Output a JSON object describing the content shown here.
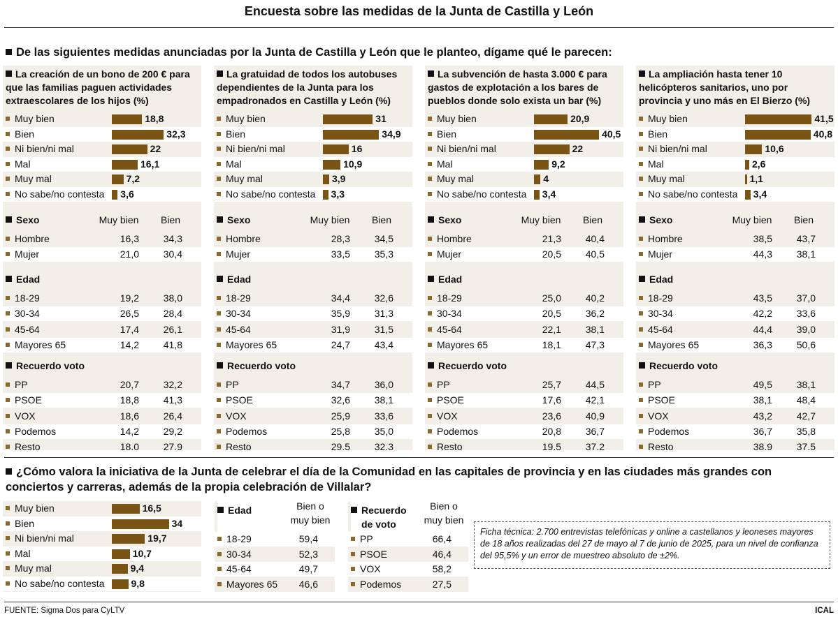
{
  "title": "Encuesta sobre las medidas de la Junta de Castilla y León",
  "main_question": "De las siguientes medidas anunciadas por la Junta de Castilla y León que le planteo, dígame qué le parecen:",
  "colors": {
    "bar": "#7a5414",
    "marker": "#8a6a2c",
    "panel_bg": "#f1efe8",
    "stripe": "#ffffff"
  },
  "demo_headers": {
    "sexo": "Sexo",
    "edad": "Edad",
    "recuerdo": "Recuerdo voto",
    "muy_bien": "Muy bien",
    "bien": "Bien"
  },
  "chart_data": [
    {
      "type": "bar",
      "title": "La creación de un bono de 200 € para que las familias paguen actividades extraescolares de los hijos (%)",
      "categories": [
        "Muy bien",
        "Bien",
        "Ni bien/ni mal",
        "Mal",
        "Muy mal",
        "No sabe/no contesta"
      ],
      "values": [
        18.8,
        32.3,
        22,
        16.1,
        7.2,
        3.6
      ],
      "labels": [
        "18,8",
        "32,3",
        "22",
        "16,1",
        "7,2",
        "3,6"
      ],
      "breakdown": {
        "sexo": [
          [
            "Hombre",
            "16,3",
            "34,3"
          ],
          [
            "Mujer",
            "21,0",
            "30,4"
          ]
        ],
        "edad": [
          [
            "18-29",
            "19,2",
            "38,0"
          ],
          [
            "30-34",
            "26,5",
            "28,4"
          ],
          [
            "45-64",
            "17,4",
            "26,1"
          ],
          [
            "Mayores 65",
            "14,2",
            "41,8"
          ]
        ],
        "voto": [
          [
            "PP",
            "20,7",
            "32,2"
          ],
          [
            "PSOE",
            "18,8",
            "41,3"
          ],
          [
            "VOX",
            "18,6",
            "26,4"
          ],
          [
            "Podemos",
            "14,2",
            "29,2"
          ],
          [
            "Resto",
            "18,0",
            "27,9"
          ]
        ]
      }
    },
    {
      "type": "bar",
      "title": "La gratuidad de todos los autobuses dependientes de la Junta para los empadronados en Castilla y León (%)",
      "categories": [
        "Muy bien",
        "Bien",
        "Ni bien/ni mal",
        "Mal",
        "Muy mal",
        "No sabe/no contesta"
      ],
      "values": [
        31,
        34.9,
        16,
        10.9,
        3.9,
        3.3
      ],
      "labels": [
        "31",
        "34,9",
        "16",
        "10,9",
        "3,9",
        "3,3"
      ],
      "breakdown": {
        "sexo": [
          [
            "Hombre",
            "28,3",
            "34,5"
          ],
          [
            "Mujer",
            "33,5",
            "35,3"
          ]
        ],
        "edad": [
          [
            "18-29",
            "34,4",
            "32,6"
          ],
          [
            "30-34",
            "35,9",
            "31,3"
          ],
          [
            "45-64",
            "31,9",
            "31,5"
          ],
          [
            "Mayores 65",
            "24,7",
            "43,4"
          ]
        ],
        "voto": [
          [
            "PP",
            "34,7",
            "36,0"
          ],
          [
            "PSOE",
            "32,6",
            "38,1"
          ],
          [
            "VOX",
            "25,9",
            "33,6"
          ],
          [
            "Podemos",
            "25,8",
            "35,0"
          ],
          [
            "Resto",
            "29,5",
            "32,3"
          ]
        ]
      }
    },
    {
      "type": "bar",
      "title": "La subvención de hasta 3.000 € para gastos de explotación a los bares de pueblos donde solo exista un bar (%)",
      "categories": [
        "Muy bien",
        "Bien",
        "Ni bien/ni mal",
        "Mal",
        "Muy mal",
        "No sabe/no contesta"
      ],
      "values": [
        20.9,
        40.5,
        22,
        9.2,
        4,
        3.4
      ],
      "labels": [
        "20,9",
        "40,5",
        "22",
        "9,2",
        "4",
        "3,4"
      ],
      "breakdown": {
        "sexo": [
          [
            "Hombre",
            "21,3",
            "40,4"
          ],
          [
            "Mujer",
            "20,5",
            "40,5"
          ]
        ],
        "edad": [
          [
            "18-29",
            "25,0",
            "40,2"
          ],
          [
            "30-34",
            "20,5",
            "36,2"
          ],
          [
            "45-64",
            "22,1",
            "38,1"
          ],
          [
            "Mayores 65",
            "18,1",
            "47,3"
          ]
        ],
        "voto": [
          [
            "PP",
            "25,7",
            "44,5"
          ],
          [
            "PSOE",
            "17,6",
            "42,1"
          ],
          [
            "VOX",
            "23,6",
            "40,9"
          ],
          [
            "Podemos",
            "20,8",
            "36,7"
          ],
          [
            "Resto",
            "19,5",
            "37,2"
          ]
        ]
      }
    },
    {
      "type": "bar",
      "title": "La ampliación hasta tener 10 helicópteros sanitarios, uno por provincia y uno más en El Bierzo (%)",
      "categories": [
        "Muy bien",
        "Bien",
        "Ni bien/ni mal",
        "Mal",
        "Muy mal",
        "No sabe/no contesta"
      ],
      "values": [
        41.5,
        40.8,
        10.6,
        2.6,
        1.1,
        3.4
      ],
      "labels": [
        "41,5",
        "40,8",
        "10,6",
        "2,6",
        "1,1",
        "3,4"
      ],
      "breakdown": {
        "sexo": [
          [
            "Hombre",
            "38,5",
            "43,7"
          ],
          [
            "Mujer",
            "44,3",
            "38,1"
          ]
        ],
        "edad": [
          [
            "18-29",
            "43,5",
            "37,0"
          ],
          [
            "30-34",
            "42,2",
            "33,6"
          ],
          [
            "45-64",
            "44,4",
            "39,0"
          ],
          [
            "Mayores 65",
            "36,3",
            "50,6"
          ]
        ],
        "voto": [
          [
            "PP",
            "49,5",
            "38,1"
          ],
          [
            "PSOE",
            "38,1",
            "48,4"
          ],
          [
            "VOX",
            "43,2",
            "42,7"
          ],
          [
            "Podemos",
            "36,7",
            "35,8"
          ],
          [
            "Resto",
            "38,9",
            "37,5"
          ]
        ]
      }
    },
    {
      "type": "bar",
      "title": "¿Cómo valora la iniciativa de la Junta de celebrar el día de la Comunidad en las capitales de provincia y en las ciudades más grandes con conciertos y carreras, además de la propia celebración de Villalar?",
      "categories": [
        "Muy bien",
        "Bien",
        "Ni bien/ni mal",
        "Mal",
        "Muy mal",
        "No sabe/no contesta"
      ],
      "values": [
        16.5,
        34,
        19.7,
        10.7,
        9.4,
        9.8
      ],
      "labels": [
        "16,5",
        "34",
        "19,7",
        "10,7",
        "9,4",
        "9,8"
      ]
    }
  ],
  "bottom": {
    "edad_header": "Edad",
    "col_header_1": "Bien o",
    "col_header_2": "muy bien",
    "edad": [
      [
        "18-29",
        "59,4"
      ],
      [
        "30-34",
        "52,3"
      ],
      [
        "45-64",
        "49,7"
      ],
      [
        "Mayores 65",
        "46,6"
      ]
    ],
    "voto_header_1": "Recuerdo",
    "voto_header_2": "de voto",
    "voto": [
      [
        "PP",
        "66,4"
      ],
      [
        "PSOE",
        "46,4"
      ],
      [
        "VOX",
        "58,2"
      ],
      [
        "Podemos",
        "27,5"
      ]
    ]
  },
  "ficha": "Ficha técnica: 2.700 entrevistas telefónicas y online a castellanos y leoneses mayores de 18 años realizadas del 27 de mayo al 7 de junio de 2025, para un nivel de confianza del 95,5% y un error de muestreo absoluto de ±2%.",
  "source": "FUENTE: Sigma Dos para CyLTV",
  "credit": "ICAL"
}
